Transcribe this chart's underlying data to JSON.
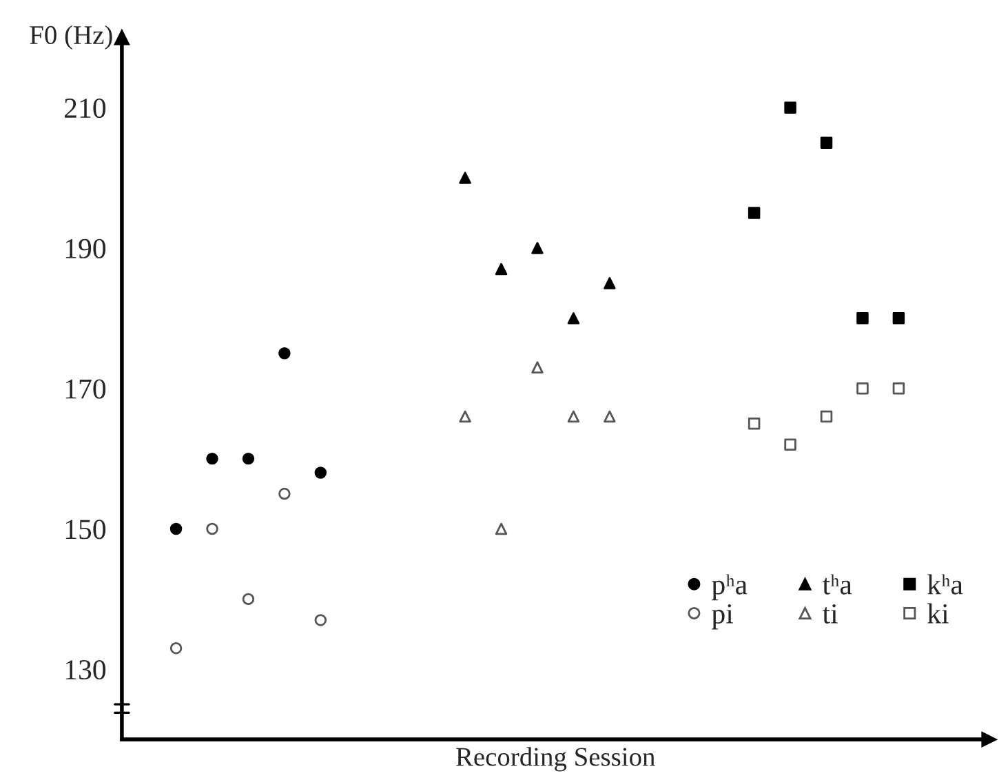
{
  "chart_data": {
    "type": "scatter",
    "xlabel": "Recording Session",
    "ylabel": "F0 (Hz)",
    "categories": [
      null,
      null,
      null,
      null,
      null,
      null,
      null,
      null,
      null,
      null,
      null,
      null,
      null,
      null,
      null,
      null,
      null,
      null,
      null,
      null,
      null,
      null,
      null,
      null
    ],
    "ylim": [
      120,
      220
    ],
    "yticks": [
      130,
      150,
      170,
      190,
      210
    ],
    "grid": false,
    "legend": "bottom right",
    "series": [
      {
        "name": "pʰa",
        "color": "#000000",
        "marker": "circle",
        "values": [
          null,
          150,
          160,
          160,
          175,
          158,
          null,
          null,
          null,
          null,
          null,
          null,
          null,
          null,
          null,
          null,
          null,
          null,
          null,
          null,
          null,
          null,
          null,
          null
        ]
      },
      {
        "name": "pi",
        "color": "#555555",
        "marker": "circle",
        "values": [
          null,
          133,
          150,
          140,
          155,
          137,
          null,
          null,
          null,
          null,
          null,
          null,
          null,
          null,
          null,
          null,
          null,
          null,
          null,
          null,
          null,
          null,
          null,
          null
        ]
      },
      {
        "name": "tʰa",
        "color": "#000000",
        "marker": "triangle",
        "values": [
          null,
          null,
          null,
          null,
          null,
          null,
          null,
          null,
          null,
          200,
          187,
          190,
          180,
          185,
          null,
          null,
          null,
          null,
          null,
          null,
          null,
          null,
          null,
          null
        ]
      },
      {
        "name": "ti",
        "color": "#555555",
        "marker": "triangle",
        "values": [
          null,
          null,
          null,
          null,
          null,
          null,
          null,
          null,
          null,
          166,
          150,
          173,
          166,
          166,
          null,
          null,
          null,
          null,
          null,
          null,
          null,
          null,
          null,
          null
        ]
      },
      {
        "name": "kʰa",
        "color": "#000000",
        "marker": "square",
        "values": [
          null,
          null,
          null,
          null,
          null,
          null,
          null,
          null,
          null,
          null,
          null,
          null,
          null,
          null,
          null,
          null,
          null,
          195,
          210,
          205,
          180,
          180,
          null,
          null
        ]
      },
      {
        "name": "ki",
        "color": "#555555",
        "marker": "square",
        "values": [
          null,
          null,
          null,
          null,
          null,
          null,
          null,
          null,
          null,
          null,
          null,
          null,
          null,
          null,
          null,
          null,
          null,
          165,
          162,
          166,
          170,
          170,
          null,
          null
        ]
      }
    ]
  }
}
